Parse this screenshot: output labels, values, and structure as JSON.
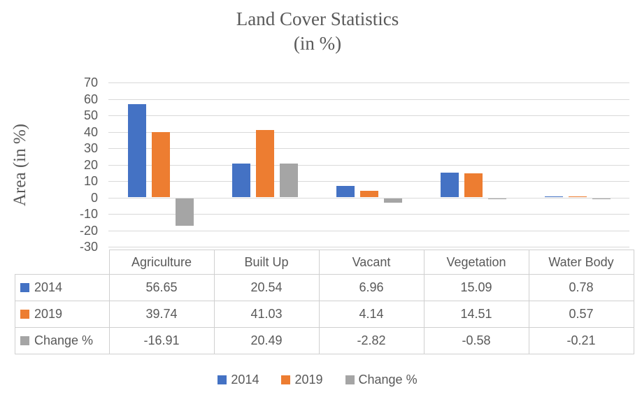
{
  "title": {
    "line1": "Land Cover Statistics",
    "line2": "(in %)"
  },
  "chart_data": {
    "type": "bar",
    "title": "Land Cover Statistics (in %)",
    "ylabel": "Area (in %)",
    "xlabel": "",
    "ylim": [
      -30,
      70
    ],
    "yticks": [
      70,
      60,
      50,
      40,
      30,
      20,
      10,
      0,
      -10,
      -20,
      -30
    ],
    "grid": true,
    "legend_position": "bottom",
    "categories": [
      "Agriculture",
      "Built Up",
      "Vacant",
      "Vegetation",
      "Water Body"
    ],
    "series": [
      {
        "name": "2014",
        "color": "#4472C4",
        "values": [
          56.65,
          20.54,
          6.96,
          15.09,
          0.78
        ]
      },
      {
        "name": "2019",
        "color": "#ED7D31",
        "values": [
          39.74,
          41.03,
          4.14,
          14.51,
          0.57
        ]
      },
      {
        "name": "Change %",
        "color": "#A5A5A5",
        "values": [
          -16.91,
          20.49,
          -2.82,
          -0.58,
          -0.21
        ]
      }
    ]
  },
  "legend": {
    "items": [
      {
        "label": "2014",
        "color": "#4472C4"
      },
      {
        "label": "2019",
        "color": "#ED7D31"
      },
      {
        "label": "Change %",
        "color": "#A5A5A5"
      }
    ]
  },
  "colors": {
    "gridline": "#D9D9D9",
    "table_border": "#D0D0D0",
    "text": "#595959",
    "background": "#FFFFFF"
  }
}
